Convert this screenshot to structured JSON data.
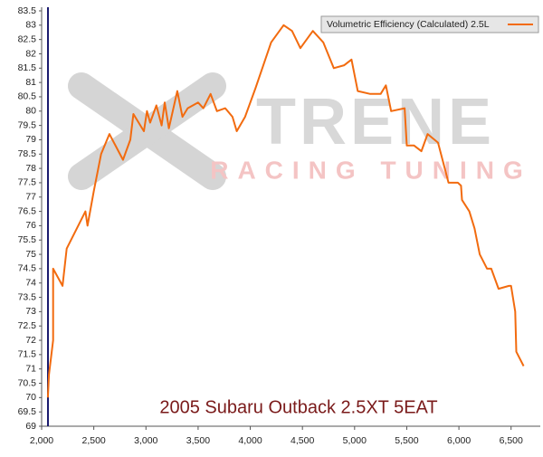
{
  "chart_data": {
    "type": "line",
    "title": "2005 Subaru Outback 2.5XT 5EAT",
    "watermark": {
      "brand": "TRENE",
      "tagline": "RACING TUNING"
    },
    "x": [
      2060,
      2070,
      2110,
      2110,
      2200,
      2240,
      2420,
      2440,
      2500,
      2570,
      2650,
      2780,
      2850,
      2880,
      2980,
      3010,
      3040,
      3100,
      3150,
      3180,
      3220,
      3300,
      3350,
      3400,
      3500,
      3550,
      3620,
      3680,
      3760,
      3830,
      3870,
      3950,
      4050,
      4200,
      4320,
      4400,
      4480,
      4600,
      4700,
      4800,
      4900,
      4970,
      5030,
      5150,
      5250,
      5300,
      5350,
      5480,
      5500,
      5570,
      5640,
      5700,
      5800,
      5900,
      5990,
      6020,
      6030,
      6100,
      6150,
      6200,
      6270,
      6310,
      6380,
      6480,
      6500,
      6540,
      6550,
      6620
    ],
    "series": [
      {
        "name": "Volumetric Efficiency (Calculated) 2.5L",
        "color": "#f26b0f",
        "values": [
          70.0,
          70.8,
          72.0,
          74.5,
          73.9,
          75.2,
          76.5,
          76.0,
          77.2,
          78.5,
          79.2,
          78.3,
          79.0,
          79.9,
          79.3,
          80.0,
          79.6,
          80.2,
          79.5,
          80.3,
          79.4,
          80.7,
          79.8,
          80.1,
          80.3,
          80.1,
          80.6,
          80.0,
          80.1,
          79.8,
          79.3,
          79.8,
          80.8,
          82.4,
          83.0,
          82.8,
          82.2,
          82.8,
          82.4,
          81.5,
          81.6,
          81.8,
          80.7,
          80.6,
          80.6,
          80.9,
          80.0,
          80.1,
          78.8,
          78.8,
          78.6,
          79.2,
          78.9,
          77.5,
          77.5,
          77.4,
          76.9,
          76.5,
          75.9,
          75.0,
          74.5,
          74.5,
          73.8,
          73.9,
          73.9,
          73.0,
          71.6,
          71.1
        ]
      }
    ],
    "xlim": [
      2000,
      6780
    ],
    "xticks": [
      {
        "value": 2000,
        "label": "2,000"
      },
      {
        "value": 2500,
        "label": "2,500"
      },
      {
        "value": 3000,
        "label": "3,000"
      },
      {
        "value": 3500,
        "label": "3,500"
      },
      {
        "value": 4000,
        "label": "4,000"
      },
      {
        "value": 4500,
        "label": "4,500"
      },
      {
        "value": 5000,
        "label": "5,000"
      },
      {
        "value": 5500,
        "label": "5,500"
      },
      {
        "value": 6000,
        "label": "6,000"
      },
      {
        "value": 6500,
        "label": "6,500"
      }
    ],
    "ylim": [
      69,
      83.5
    ],
    "yticks": [
      69,
      69.5,
      70,
      70.5,
      71,
      71.5,
      72,
      72.5,
      73,
      73.5,
      74,
      74.5,
      75,
      75.5,
      76,
      76.5,
      77,
      77.5,
      78,
      78.5,
      79,
      79.5,
      80,
      80.5,
      81,
      81.5,
      82,
      82.5,
      83,
      83.5
    ],
    "legend": "top-right"
  }
}
